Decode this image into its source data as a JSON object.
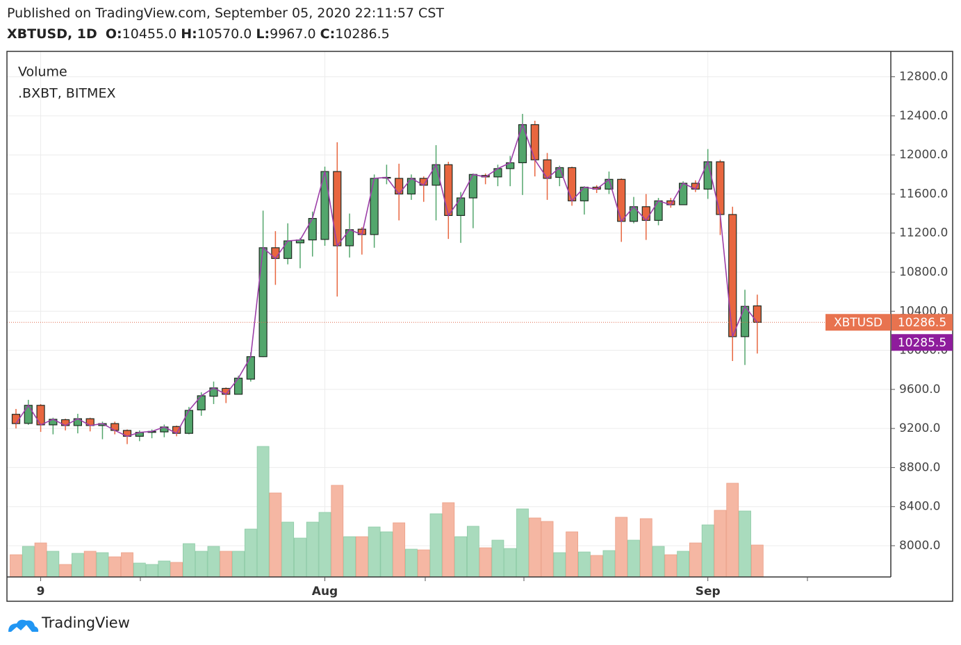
{
  "header": {
    "published": "Published on TradingView.com, September 05, 2020 22:11:57 CST",
    "symbol": "XBTUSD, 1D",
    "ohlc": [
      {
        "label": "O:",
        "value": "10455.0"
      },
      {
        "label": "H:",
        "value": "10570.0"
      },
      {
        "label": "L:",
        "value": "9967.0"
      },
      {
        "label": "C:",
        "value": "10286.5"
      }
    ]
  },
  "brand": "TradingView",
  "chart_data": {
    "type": "candlestick",
    "categories": [
      null,
      null,
      "9",
      null,
      null,
      null,
      null,
      null,
      null,
      null,
      null,
      null,
      null,
      null,
      null,
      null,
      null,
      null,
      null,
      null,
      null,
      null,
      null,
      null,
      null,
      "Aug",
      null,
      null,
      null,
      null,
      null,
      null,
      null,
      null,
      null,
      null,
      null,
      null,
      null,
      null,
      null,
      null,
      null,
      null,
      null,
      null,
      null,
      null,
      null,
      null,
      null,
      null,
      null,
      null,
      null,
      null,
      "Sep",
      null,
      null,
      null,
      null
    ],
    "ylim": [
      7680,
      13060
    ],
    "yticks": [
      {
        "value": 8000,
        "label": "8000.0"
      },
      {
        "value": 8400,
        "label": "8400.0"
      },
      {
        "value": 8800,
        "label": "8800.0"
      },
      {
        "value": 9200,
        "label": "9200.0"
      },
      {
        "value": 9600,
        "label": "9600.0"
      },
      {
        "value": 10000,
        "label": "10000.0"
      },
      {
        "value": 10400,
        "label": "10400.0"
      },
      {
        "value": 10800,
        "label": "10800.0"
      },
      {
        "value": 11200,
        "label": "11200.0"
      },
      {
        "value": 11600,
        "label": "11600.0"
      },
      {
        "value": 12000,
        "label": "12000.0"
      },
      {
        "value": 12400,
        "label": "12400.0"
      },
      {
        "value": 12800,
        "label": "12800.0"
      }
    ],
    "grid": true,
    "series": [
      {
        "name": "XBTUSD",
        "type": "candlestick",
        "up_color": "#53a66c",
        "down_color": "#e8663f",
        "border_color": "#1f2b23",
        "open": [
          9345,
          9252,
          9437,
          9237,
          9290,
          9230,
          9300,
          9230,
          9250,
          9180,
          9120,
          9160,
          9165,
          9220,
          9150,
          9390,
          9530,
          9610,
          9550,
          9705,
          9935,
          11050,
          10940,
          11100,
          11130,
          11135,
          11830,
          11070,
          11240,
          11185,
          11765,
          11760,
          11600,
          11760,
          11690,
          11900,
          11380,
          11560,
          11790,
          11775,
          11860,
          11920,
          12310,
          11950,
          11770,
          11870,
          11530,
          11670,
          11650,
          11750,
          11320,
          11470,
          11330,
          11530,
          11490,
          11710,
          11650,
          11930,
          11390,
          10140,
          10455
        ],
        "high": [
          9400,
          9493,
          9450,
          9310,
          9300,
          9350,
          9310,
          9270,
          9270,
          9190,
          9180,
          9190,
          9240,
          9230,
          9420,
          9570,
          9680,
          9620,
          9740,
          9980,
          11430,
          11220,
          11300,
          11150,
          11420,
          11880,
          12130,
          11400,
          11260,
          11800,
          11900,
          11910,
          11800,
          11780,
          12100,
          11930,
          11620,
          11810,
          11810,
          11900,
          11990,
          12420,
          12350,
          12020,
          11890,
          11880,
          11680,
          11690,
          11830,
          11760,
          11570,
          11600,
          11560,
          11560,
          11730,
          11740,
          12060,
          11950,
          11470,
          10620,
          10570
        ],
        "low": [
          9200,
          9237,
          9165,
          9140,
          9180,
          9150,
          9170,
          9090,
          9140,
          9040,
          9070,
          9100,
          9110,
          9120,
          9140,
          9330,
          9450,
          9460,
          9550,
          9680,
          9930,
          10670,
          10880,
          10840,
          10960,
          11070,
          10550,
          10950,
          10980,
          11050,
          11700,
          11330,
          11540,
          11520,
          11330,
          11140,
          11100,
          11250,
          11700,
          11680,
          11680,
          11590,
          11780,
          11540,
          11680,
          11480,
          11390,
          11610,
          11600,
          11110,
          11300,
          11130,
          11280,
          11460,
          11490,
          11620,
          11550,
          11180,
          9890,
          9850,
          9967
        ],
        "close": [
          9250,
          9437,
          9237,
          9294,
          9230,
          9300,
          9230,
          9250,
          9180,
          9120,
          9160,
          9170,
          9215,
          9150,
          9385,
          9535,
          9615,
          9550,
          9715,
          9935,
          11050,
          10940,
          11120,
          11130,
          11350,
          11830,
          11070,
          11235,
          11185,
          11760,
          11770,
          11600,
          11760,
          11690,
          11900,
          11380,
          11560,
          11800,
          11775,
          11860,
          11920,
          12310,
          11950,
          11760,
          11870,
          11530,
          11670,
          11650,
          11750,
          11320,
          11470,
          11330,
          11530,
          11490,
          11710,
          11650,
          11930,
          11390,
          10140,
          10450,
          10286.5
        ]
      },
      {
        "name": ".BXBT, BITMEX",
        "type": "line",
        "color": "#9c3fa8",
        "values": [
          9250,
          9437,
          9237,
          9294,
          9230,
          9300,
          9230,
          9250,
          9180,
          9120,
          9160,
          9170,
          9215,
          9150,
          9385,
          9535,
          9615,
          9550,
          9715,
          9935,
          11050,
          10940,
          11120,
          11130,
          11350,
          11830,
          11070,
          11235,
          11185,
          11760,
          11770,
          11600,
          11760,
          11690,
          11900,
          11380,
          11560,
          11800,
          11775,
          11860,
          11920,
          12310,
          11950,
          11760,
          11870,
          11530,
          11670,
          11650,
          11750,
          11320,
          11470,
          11330,
          11530,
          11490,
          11710,
          11650,
          11930,
          11390,
          10140,
          10450,
          10285.5
        ]
      },
      {
        "name": "Volume",
        "type": "bar",
        "up_color": "#a9dbbd",
        "down_color": "#f5b7a3",
        "values": [
          32,
          44,
          49,
          37,
          18,
          34,
          37,
          35,
          29,
          35,
          20,
          18,
          23,
          21,
          48,
          37,
          44,
          37,
          37,
          69,
          188,
          121,
          79,
          56,
          79,
          93,
          132,
          58,
          58,
          72,
          65,
          78,
          40,
          39,
          91,
          107,
          58,
          73,
          42,
          53,
          41,
          98,
          85,
          80,
          35,
          65,
          36,
          31,
          38,
          86,
          53,
          84,
          44,
          32,
          37,
          49,
          75,
          96,
          135,
          95,
          46
        ]
      }
    ]
  }
}
